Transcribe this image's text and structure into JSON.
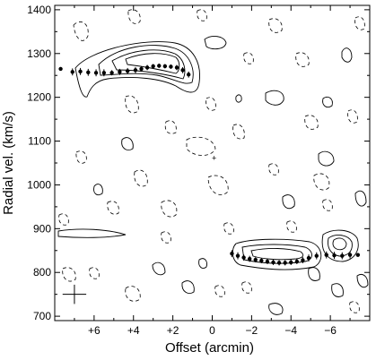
{
  "chart_data": {
    "type": "scatter",
    "title": "",
    "xlabel": "Offset (arcmin)",
    "ylabel": "Radial vel. (km/s)",
    "xlim": [
      8,
      -8
    ],
    "ylim": [
      690,
      1410
    ],
    "x_ticks": [
      {
        "value": 6,
        "label": "+6"
      },
      {
        "value": 4,
        "label": "+4"
      },
      {
        "value": 2,
        "label": "+2"
      },
      {
        "value": 0,
        "label": "0"
      },
      {
        "value": -2,
        "label": "−2"
      },
      {
        "value": -4,
        "label": "−4"
      },
      {
        "value": -6,
        "label": "−6"
      }
    ],
    "y_ticks": [
      {
        "value": 700,
        "label": "700"
      },
      {
        "value": 800,
        "label": "800"
      },
      {
        "value": 900,
        "label": "900"
      },
      {
        "value": 1000,
        "label": "1000"
      },
      {
        "value": 1100,
        "label": "1100"
      },
      {
        "value": 1200,
        "label": "1200"
      },
      {
        "value": 1300,
        "label": "1300"
      },
      {
        "value": 1400,
        "label": "1400"
      }
    ],
    "series": [
      {
        "points": [
          {
            "x": 7.7,
            "y": 1265,
            "err": 4
          },
          {
            "x": 7.1,
            "y": 1258,
            "err": 8
          },
          {
            "x": 6.7,
            "y": 1259,
            "err": 8
          },
          {
            "x": 6.3,
            "y": 1257,
            "err": 8
          },
          {
            "x": 5.9,
            "y": 1256,
            "err": 8
          },
          {
            "x": 5.5,
            "y": 1256,
            "err": 8
          },
          {
            "x": 5.1,
            "y": 1256,
            "err": 6
          },
          {
            "x": 4.7,
            "y": 1258,
            "err": 7
          },
          {
            "x": 4.3,
            "y": 1260,
            "err": 7
          },
          {
            "x": 3.9,
            "y": 1262,
            "err": 7
          },
          {
            "x": 3.6,
            "y": 1265,
            "err": 6
          },
          {
            "x": 3.3,
            "y": 1268,
            "err": 6
          },
          {
            "x": 3.0,
            "y": 1271,
            "err": 5
          },
          {
            "x": 2.7,
            "y": 1272,
            "err": 5
          },
          {
            "x": 2.4,
            "y": 1271,
            "err": 5
          },
          {
            "x": 2.1,
            "y": 1270,
            "err": 5
          },
          {
            "x": 1.8,
            "y": 1268,
            "err": 6
          },
          {
            "x": 1.5,
            "y": 1262,
            "err": 7
          },
          {
            "x": 1.2,
            "y": 1252,
            "err": 7
          }
        ]
      },
      {
        "points": [
          {
            "x": -1.0,
            "y": 843,
            "err": 8
          },
          {
            "x": -1.3,
            "y": 838,
            "err": 8
          },
          {
            "x": -1.6,
            "y": 834,
            "err": 7
          },
          {
            "x": -1.9,
            "y": 831,
            "err": 7
          },
          {
            "x": -2.2,
            "y": 829,
            "err": 6
          },
          {
            "x": -2.5,
            "y": 827,
            "err": 6
          },
          {
            "x": -2.8,
            "y": 825,
            "err": 6
          },
          {
            "x": -3.1,
            "y": 823,
            "err": 6
          },
          {
            "x": -3.4,
            "y": 822,
            "err": 6
          },
          {
            "x": -3.7,
            "y": 822,
            "err": 6
          },
          {
            "x": -4.0,
            "y": 823,
            "err": 6
          },
          {
            "x": -4.3,
            "y": 825,
            "err": 6
          },
          {
            "x": -4.6,
            "y": 828,
            "err": 7
          },
          {
            "x": -4.9,
            "y": 833,
            "err": 8
          },
          {
            "x": -5.3,
            "y": 838,
            "err": 8
          },
          {
            "x": -5.8,
            "y": 840,
            "err": 8
          },
          {
            "x": -6.2,
            "y": 839,
            "err": 8
          },
          {
            "x": -6.6,
            "y": 838,
            "err": 8
          },
          {
            "x": -7.0,
            "y": 840,
            "err": 8
          },
          {
            "x": -7.4,
            "y": 840,
            "err": 4
          }
        ]
      }
    ],
    "resolution_cross": {
      "x": 7.0,
      "y": 750,
      "dx": 0.6,
      "dy": 22
    },
    "grid": false,
    "legend": "none"
  }
}
